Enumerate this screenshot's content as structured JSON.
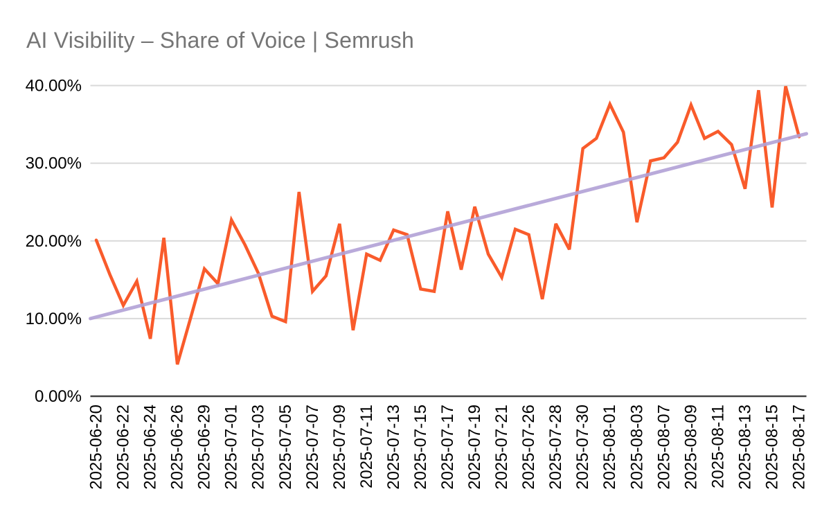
{
  "chart_data": {
    "type": "line",
    "title": "AI Visibility – Share of Voice | Semrush",
    "x_labels": [
      "2025-06-20",
      "2025-06-22",
      "2025-06-24",
      "2025-06-26",
      "2025-06-29",
      "2025-07-01",
      "2025-07-03",
      "2025-07-05",
      "2025-07-07",
      "2025-07-09",
      "2025-07-11",
      "2025-07-13",
      "2025-07-15",
      "2025-07-17",
      "2025-07-19",
      "2025-07-21",
      "2025-07-26",
      "2025-07-28",
      "2025-07-30",
      "2025-08-01",
      "2025-08-03",
      "2025-08-07",
      "2025-08-09",
      "2025-08-11",
      "2025-08-13",
      "2025-08-15",
      "2025-08-17"
    ],
    "label_every_n_points": 2,
    "series": [
      {
        "name": "Share of Voice",
        "color": "#F95B2B",
        "values": [
          20.1,
          15.7,
          11.7,
          14.8,
          7.4,
          20.4,
          4.1,
          10.2,
          16.4,
          14.5,
          22.7,
          19.5,
          15.8,
          10.3,
          9.6,
          26.3,
          13.5,
          15.5,
          22.2,
          8.5,
          18.3,
          17.5,
          21.4,
          20.8,
          13.8,
          13.5,
          23.8,
          16.3,
          24.4,
          18.3,
          15.3,
          21.5,
          20.8,
          12.5,
          22.2,
          18.9,
          31.9,
          33.2,
          37.6,
          34.0,
          22.4,
          30.3,
          30.7,
          32.7,
          37.5,
          33.2,
          34.1,
          32.4,
          26.7,
          39.4,
          24.3,
          39.9,
          33.4
        ]
      },
      {
        "name": "Linear trend",
        "color": "#B2A1D6",
        "trend_start": 10.0,
        "trend_end": 33.8
      }
    ],
    "y_axis": {
      "min": 0,
      "max": 40,
      "tick_step": 10,
      "tick_labels": [
        "0.00%",
        "10.00%",
        "20.00%",
        "30.00%",
        "40.00%"
      ]
    },
    "grid": true,
    "legend": "none",
    "colors": {
      "title": "#757575",
      "axis_text": "#000000",
      "gridline": "#D9D9D9",
      "axis_line": "#424242",
      "background": "#FFFFFF"
    }
  }
}
